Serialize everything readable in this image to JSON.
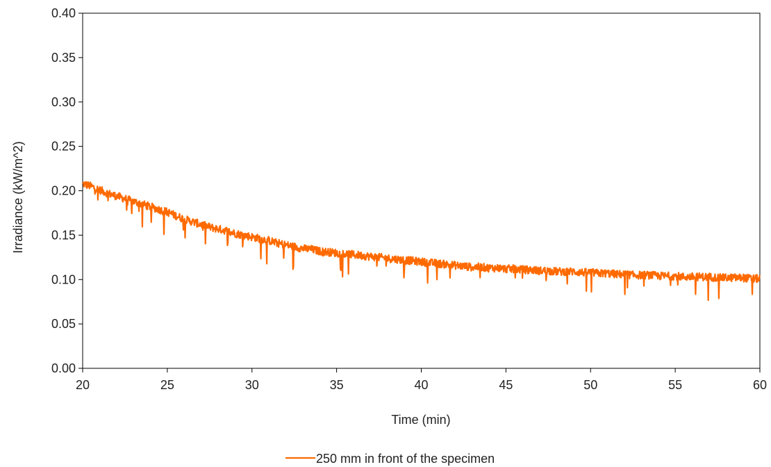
{
  "chart_data": {
    "type": "line",
    "title": "",
    "xlabel": "Time (min)",
    "ylabel": "Irradiance (kW/m^2)",
    "xlim": [
      20,
      60
    ],
    "ylim": [
      0,
      0.4
    ],
    "x_ticks": [
      "20",
      "25",
      "30",
      "35",
      "40",
      "45",
      "50",
      "55",
      "60"
    ],
    "y_ticks": [
      "0.00",
      "0.05",
      "0.10",
      "0.15",
      "0.20",
      "0.25",
      "0.30",
      "0.35",
      "0.40"
    ],
    "grid": false,
    "legend_position": "bottom-center",
    "series": [
      {
        "name": "250 mm in front of the specimen",
        "color": "#ff6a00",
        "x": [
          20,
          20.5,
          21,
          21.5,
          22,
          22.5,
          23,
          23.5,
          24,
          24.5,
          25,
          25.5,
          26,
          26.5,
          27,
          27.5,
          28,
          28.5,
          29,
          29.5,
          30,
          30.5,
          31,
          31.5,
          32,
          32.5,
          33,
          33.5,
          34,
          34.5,
          35,
          35.5,
          36,
          36.5,
          37,
          37.5,
          38,
          38.5,
          39,
          39.5,
          40,
          40.5,
          41,
          41.5,
          42,
          42.5,
          43,
          43.5,
          44,
          44.5,
          45,
          45.5,
          46,
          46.5,
          47,
          47.5,
          48,
          48.5,
          49,
          49.5,
          50,
          50.5,
          51,
          51.5,
          52,
          52.5,
          53,
          53.5,
          54,
          54.5,
          55,
          55.5,
          56,
          56.5,
          57,
          57.5,
          58,
          58.5,
          59,
          59.5,
          60
        ],
        "values": [
          0.208,
          0.205,
          0.201,
          0.197,
          0.194,
          0.191,
          0.188,
          0.185,
          0.182,
          0.179,
          0.176,
          0.172,
          0.168,
          0.165,
          0.162,
          0.159,
          0.157,
          0.155,
          0.152,
          0.15,
          0.148,
          0.146,
          0.144,
          0.141,
          0.139,
          0.137,
          0.135,
          0.134,
          0.132,
          0.131,
          0.13,
          0.129,
          0.128,
          0.127,
          0.126,
          0.125,
          0.124,
          0.123,
          0.122,
          0.121,
          0.12,
          0.119,
          0.118,
          0.117,
          0.116,
          0.115,
          0.114,
          0.114,
          0.113,
          0.113,
          0.112,
          0.112,
          0.111,
          0.111,
          0.11,
          0.11,
          0.109,
          0.109,
          0.109,
          0.108,
          0.108,
          0.107,
          0.107,
          0.106,
          0.106,
          0.105,
          0.105,
          0.105,
          0.104,
          0.104,
          0.104,
          0.103,
          0.103,
          0.103,
          0.103,
          0.102,
          0.102,
          0.102,
          0.102,
          0.101,
          0.101
        ]
      }
    ]
  }
}
